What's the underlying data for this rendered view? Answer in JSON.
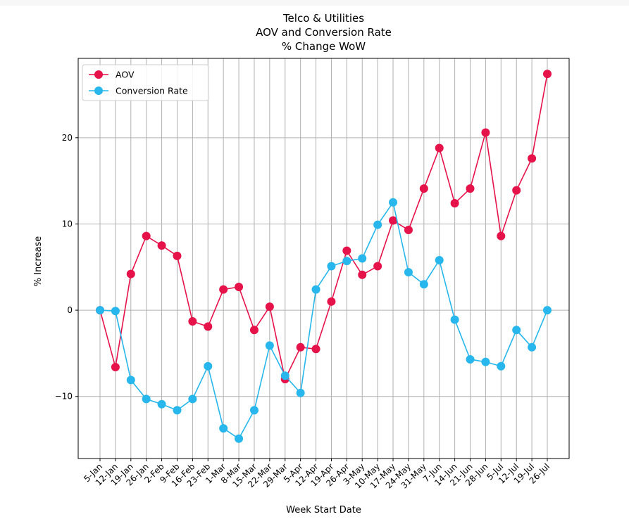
{
  "chart_data": {
    "type": "line",
    "title": [
      "Telco & Utilities",
      "AOV and Conversion Rate",
      "% Change WoW"
    ],
    "xlabel": "Week Start Date",
    "ylabel": "% Increase",
    "categories": [
      "5-Jan",
      "12-Jan",
      "19-Jan",
      "26-Jan",
      "2-Feb",
      "9-Feb",
      "16-Feb",
      "23-Feb",
      "1-Mar",
      "8-Mar",
      "15-Mar",
      "22-Mar",
      "29-Mar",
      "5-Apr",
      "12-Apr",
      "19-Apr",
      "26-Apr",
      "3-May",
      "10-May",
      "17-May",
      "24-May",
      "31-May",
      "7-Jun",
      "14-Jun",
      "21-Jun",
      "28-Jun",
      "5-Jul",
      "12-Jul",
      "19-Jul",
      "26-Jul"
    ],
    "yticks": [
      -10,
      0,
      10,
      20
    ],
    "ylim": [
      -17.2,
      29.2
    ],
    "grid": true,
    "legend": "upper-left",
    "series": [
      {
        "name": "AOV",
        "color": "#e6124a",
        "values": [
          0,
          -6.6,
          4.2,
          8.6,
          7.5,
          6.3,
          -1.3,
          -1.9,
          2.4,
          2.7,
          -2.3,
          0.4,
          -8.0,
          -4.3,
          -4.5,
          1.0,
          6.9,
          4.1,
          5.1,
          10.4,
          9.3,
          14.1,
          18.8,
          12.4,
          14.1,
          20.6,
          8.6,
          13.9,
          17.6,
          27.4
        ]
      },
      {
        "name": "Conversion Rate",
        "color": "#27b7ec",
        "values": [
          0,
          -0.1,
          -8.1,
          -10.3,
          -10.9,
          -11.6,
          -10.3,
          -6.5,
          -13.7,
          -14.9,
          -11.6,
          -4.1,
          -7.6,
          -9.6,
          2.4,
          5.1,
          5.7,
          6.0,
          9.9,
          12.5,
          4.4,
          3.0,
          5.8,
          -1.1,
          -5.7,
          -6.0,
          -6.5,
          -2.3,
          -4.3,
          0.0
        ]
      }
    ]
  }
}
